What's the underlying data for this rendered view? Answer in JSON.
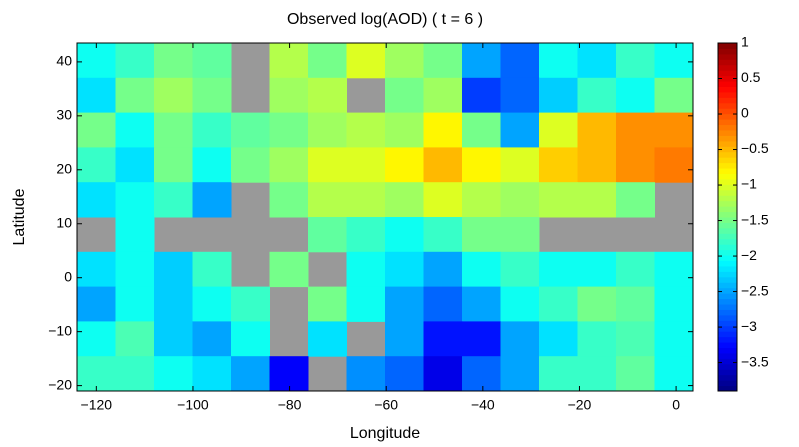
{
  "chart_data": {
    "type": "heatmap",
    "title": "Observed log(AOD) ( t = 6 )",
    "x_label": "Longitude",
    "y_label": "Latitude",
    "colormap": "jet",
    "missing_color": "#999999",
    "xlim": [
      -124,
      3.5
    ],
    "ylim": [
      -21,
      43.5
    ],
    "clim": [
      -3.9,
      1
    ],
    "xticks": [
      {
        "value": -120,
        "label": "−120"
      },
      {
        "value": -100,
        "label": "−100"
      },
      {
        "value": -80,
        "label": "−80"
      },
      {
        "value": -60,
        "label": "−60"
      },
      {
        "value": -40,
        "label": "−40"
      },
      {
        "value": -20,
        "label": "−20"
      },
      0
    ],
    "yticks": [
      {
        "value": -20,
        "label": "−20"
      },
      {
        "value": -10,
        "label": "−10"
      },
      0,
      10,
      20,
      30,
      40
    ],
    "cticks": [
      1,
      0.5,
      0,
      {
        "value": -0.5,
        "label": "−0.5"
      },
      {
        "value": -1,
        "label": "−1"
      },
      {
        "value": -1.5,
        "label": "−1.5"
      },
      {
        "value": -2,
        "label": "−2"
      },
      {
        "value": -2.5,
        "label": "−2.5"
      },
      {
        "value": -3,
        "label": "−3"
      },
      {
        "value": -3.5,
        "label": "−3.5"
      }
    ],
    "values": [
      [
        -2,
        -1.8,
        -1.5,
        -1.6,
        null,
        -1.2,
        -1.5,
        -1,
        -1.3,
        -1.5,
        -2.5,
        -2.8,
        -2,
        -2.2,
        -1.8,
        -2
      ],
      [
        -2.2,
        -1.5,
        -1.3,
        -1.5,
        null,
        -1.3,
        -1.2,
        null,
        -1.5,
        -1.3,
        -3,
        -2.8,
        -2.3,
        -1.8,
        -2,
        -1.5
      ],
      [
        -1.5,
        -2,
        -1.5,
        -1.8,
        -1.6,
        -1.5,
        -1.3,
        -1.2,
        -1.3,
        -0.8,
        -1.5,
        -2.5,
        -1,
        -0.5,
        -0.3,
        -0.3
      ],
      [
        -1.8,
        -2.2,
        -1.5,
        -2,
        -1.5,
        -1.3,
        -1,
        -1,
        -0.8,
        -0.5,
        -0.8,
        -1,
        -0.6,
        -0.5,
        -0.3,
        -0.2
      ],
      [
        -2.2,
        -2,
        -1.8,
        -2.5,
        null,
        -1.5,
        -1.2,
        -1.2,
        -1.3,
        -1,
        -1.2,
        -1.3,
        -1.2,
        -1.2,
        -1.5,
        null
      ],
      [
        null,
        -2,
        null,
        null,
        null,
        null,
        -1.6,
        -1.8,
        -2,
        -1.8,
        -1.5,
        -1.5,
        null,
        null,
        null,
        null
      ],
      [
        -2.2,
        -2,
        -2.3,
        -1.8,
        null,
        -1.5,
        null,
        -2,
        -2.2,
        -2.5,
        -2,
        -1.8,
        -2,
        -2,
        -1.8,
        -2
      ],
      [
        -2.5,
        -2,
        -2.3,
        -2,
        -1.8,
        null,
        -1.5,
        -2,
        -2.5,
        -2.8,
        -2.5,
        -2,
        -1.8,
        -1.5,
        -1.6,
        -2
      ],
      [
        -2,
        -1.7,
        -2.3,
        -2.5,
        -2,
        null,
        -2.2,
        null,
        -2.5,
        -3.2,
        -3.2,
        -2.5,
        -2.2,
        -1.8,
        -1.7,
        -2
      ],
      [
        -1.8,
        -1.8,
        -2,
        -2.2,
        -2.5,
        -3.3,
        null,
        -2.6,
        -2.8,
        -3.4,
        -2.8,
        -2.5,
        -1.8,
        -1.8,
        -1.6,
        -2
      ]
    ]
  }
}
